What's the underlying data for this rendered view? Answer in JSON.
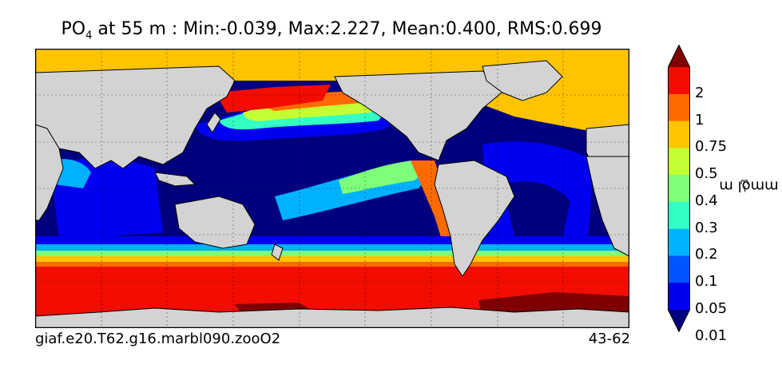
{
  "title": {
    "variable": "PO",
    "subscript": "4",
    "rest": " at 55 m : Min:-0.039, Max:2.227, Mean:0.400, RMS:0.699"
  },
  "footer": {
    "case_name": "giaf.e20.T62.g16.marbl090.zooO2",
    "years": "43-62"
  },
  "colorbar": {
    "unit_base": "mmol m",
    "unit_exp": "−3",
    "ticks": [
      "2",
      "1",
      "0.75",
      "0.5",
      "0.4",
      "0.3",
      "0.2",
      "0.1",
      "0.05",
      "0.01"
    ],
    "colors": [
      "#7f0000",
      "#f20d00",
      "#ff6a00",
      "#ffc400",
      "#c4ff33",
      "#7dff7a",
      "#33ffc4",
      "#00b1ff",
      "#0055ff",
      "#0000f0",
      "#00007f"
    ],
    "land_color": "#d3d3d3"
  }
}
